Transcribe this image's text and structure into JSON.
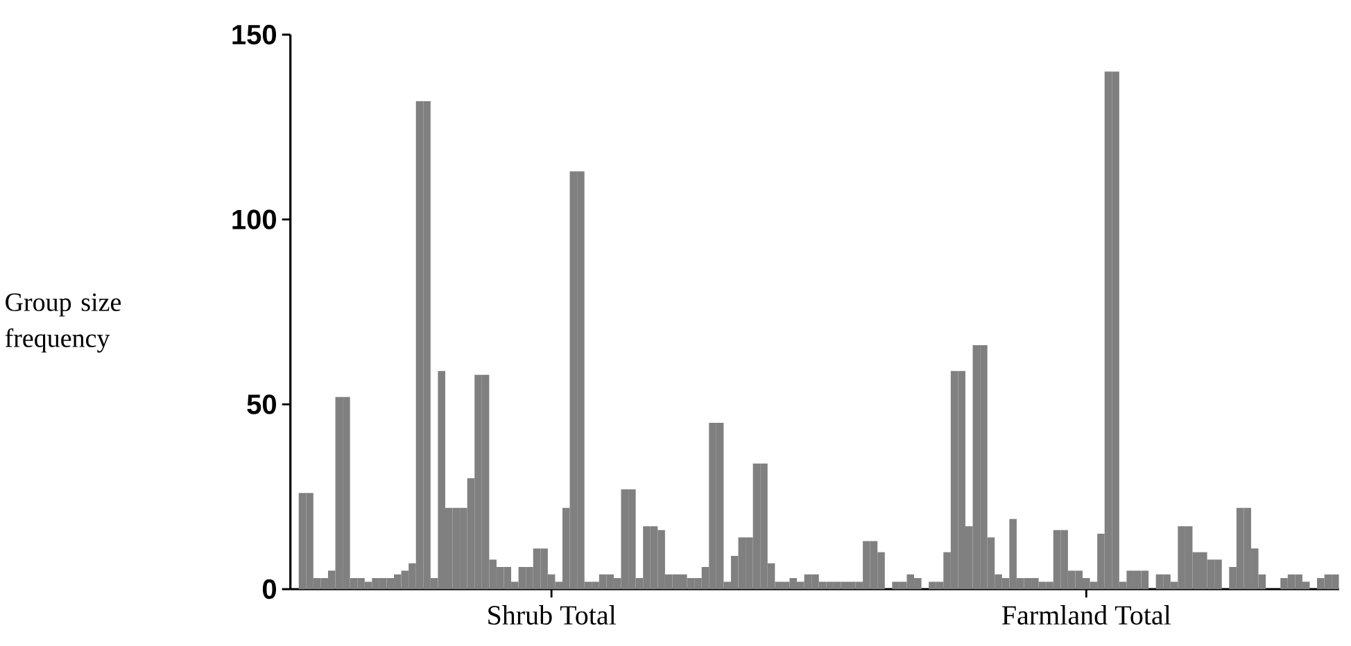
{
  "chart_data": {
    "type": "bar",
    "ylabel": "Group size frequency",
    "color": "#808080",
    "categories": [
      null,
      null,
      null,
      null,
      null,
      null,
      null,
      null,
      null,
      null,
      null,
      null,
      null,
      null,
      null,
      null,
      null,
      null,
      null,
      null,
      null,
      null,
      null,
      null,
      null,
      null,
      null,
      null,
      null,
      null,
      null,
      null,
      null,
      null,
      "Shrub Total",
      null,
      null,
      null,
      null,
      null,
      null,
      null,
      null,
      null,
      null,
      null,
      null,
      null,
      null,
      null,
      null,
      null,
      null,
      null,
      null,
      null,
      null,
      null,
      null,
      null,
      null,
      null,
      null,
      null,
      null,
      null,
      null,
      null,
      null,
      null,
      null,
      null,
      null,
      null,
      null,
      null,
      null,
      null,
      null,
      null,
      null,
      null,
      null,
      null,
      null,
      null,
      null,
      null,
      null,
      null,
      null,
      null,
      null,
      null,
      null,
      null,
      null,
      null,
      null,
      null,
      null,
      null,
      null,
      null,
      null,
      null,
      null,
      "Farmland Total",
      null,
      null,
      null,
      null,
      null,
      null,
      null,
      null,
      null,
      null,
      null,
      null,
      null,
      null,
      null,
      null,
      null,
      null,
      null,
      null,
      null,
      null,
      null,
      null,
      null,
      null,
      null,
      null,
      null,
      null,
      null,
      null,
      null,
      null
    ],
    "values": [
      26,
      26,
      3,
      3,
      5,
      52,
      52,
      3,
      3,
      2,
      3,
      3,
      3,
      4,
      5,
      7,
      132,
      132,
      3,
      59,
      22,
      22,
      22,
      30,
      58,
      58,
      8,
      6,
      6,
      2,
      6,
      6,
      11,
      11,
      4,
      2,
      22,
      113,
      113,
      2,
      2,
      4,
      4,
      3,
      27,
      27,
      3,
      17,
      17,
      16,
      4,
      4,
      4,
      3,
      3,
      6,
      45,
      45,
      2,
      9,
      14,
      14,
      34,
      34,
      7,
      2,
      2,
      3,
      2,
      4,
      4,
      2,
      2,
      2,
      2,
      2,
      2,
      13,
      13,
      10,
      0,
      2,
      2,
      4,
      3,
      0,
      2,
      2,
      10,
      59,
      59,
      17,
      66,
      66,
      14,
      4,
      3,
      19,
      3,
      3,
      3,
      2,
      2,
      16,
      16,
      5,
      5,
      3,
      2,
      15,
      140,
      140,
      2,
      5,
      5,
      5,
      0,
      4,
      4,
      2,
      17,
      17,
      10,
      10,
      8,
      8,
      0,
      6,
      22,
      22,
      11,
      4,
      0,
      0,
      3,
      4,
      4,
      2,
      0,
      3,
      4,
      4
    ],
    "ylim": [
      0,
      150
    ],
    "yticks": [
      0,
      50,
      100,
      150
    ]
  }
}
